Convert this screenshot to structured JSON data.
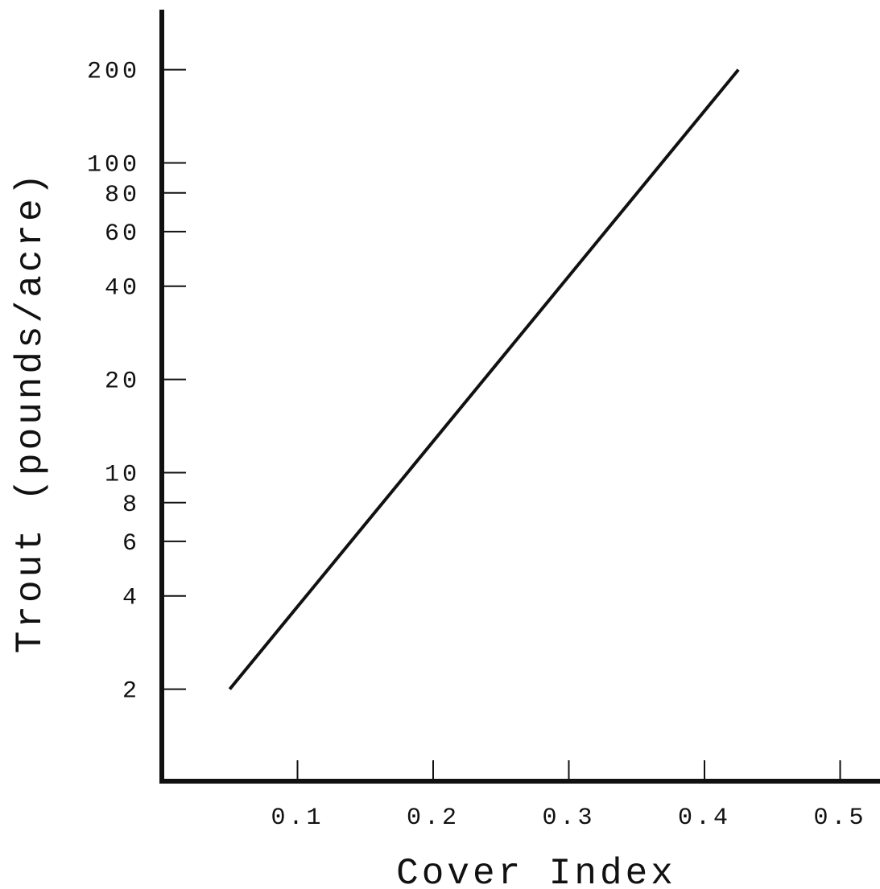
{
  "chart_data": {
    "type": "line",
    "xlabel": "Cover Index",
    "ylabel": "Trout (pounds/acre)",
    "y_scale": "log",
    "xlim": [
      0,
      0.5
    ],
    "ylim": [
      1,
      300
    ],
    "grid": false,
    "x_ticks": [
      {
        "value": 0.1,
        "label": "0.1"
      },
      {
        "value": 0.2,
        "label": "0.2"
      },
      {
        "value": 0.3,
        "label": "0.3"
      },
      {
        "value": 0.4,
        "label": "0.4"
      },
      {
        "value": 0.5,
        "label": "0.5"
      }
    ],
    "y_ticks": [
      {
        "value": 2,
        "label": "2"
      },
      {
        "value": 4,
        "label": "4"
      },
      {
        "value": 6,
        "label": "6"
      },
      {
        "value": 8,
        "label": "8"
      },
      {
        "value": 10,
        "label": "10"
      },
      {
        "value": 20,
        "label": "20"
      },
      {
        "value": 40,
        "label": "40"
      },
      {
        "value": 60,
        "label": "60"
      },
      {
        "value": 80,
        "label": "80"
      },
      {
        "value": 100,
        "label": "100"
      },
      {
        "value": 200,
        "label": "200"
      }
    ],
    "series": [
      {
        "x": [
          0.05,
          0.425
        ],
        "y": [
          2,
          200
        ]
      }
    ],
    "colors": {
      "line": "#111111",
      "axes": "#111111"
    }
  }
}
